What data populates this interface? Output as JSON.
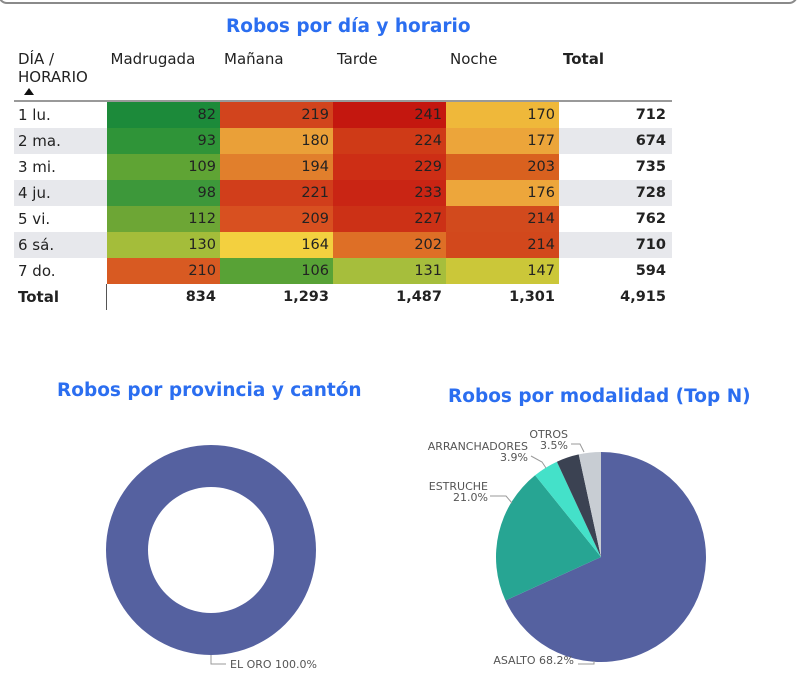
{
  "matrix": {
    "title": "Robos por día y horario",
    "row_header": [
      "DÍA /",
      "HORARIO"
    ],
    "columns": [
      "Madrugada",
      "Mañana",
      "Tarde",
      "Noche"
    ],
    "total_label": "Total",
    "rows": [
      {
        "label": "1 lu.",
        "values": [
          "82",
          "219",
          "241",
          "170"
        ],
        "total": "712",
        "colors": [
          "#1c8a3a",
          "#d2441d",
          "#c4170f",
          "#efb83a"
        ]
      },
      {
        "label": "2 ma.",
        "values": [
          "93",
          "180",
          "224",
          "177"
        ],
        "total": "674",
        "colors": [
          "#2f9438",
          "#eaa038",
          "#cf3a17",
          "#eca53a"
        ]
      },
      {
        "label": "3 mi.",
        "values": [
          "109",
          "194",
          "229",
          "203"
        ],
        "total": "735",
        "colors": [
          "#5fa434",
          "#e17f2c",
          "#cd2e15",
          "#d9611f"
        ]
      },
      {
        "label": "4 ju.",
        "values": [
          "98",
          "221",
          "233",
          "176"
        ],
        "total": "728",
        "colors": [
          "#3d983a",
          "#d13e1b",
          "#c92514",
          "#eda63b"
        ]
      },
      {
        "label": "5 vi.",
        "values": [
          "112",
          "209",
          "227",
          "214"
        ],
        "total": "762",
        "colors": [
          "#6da635",
          "#d85020",
          "#cc3116",
          "#d24a1d"
        ]
      },
      {
        "label": "6 sá.",
        "values": [
          "130",
          "164",
          "202",
          "214"
        ],
        "total": "710",
        "colors": [
          "#a4bd3a",
          "#f3d03f",
          "#de6f26",
          "#d2481c"
        ]
      },
      {
        "label": "7 do.",
        "values": [
          "210",
          "106",
          "131",
          "147"
        ],
        "total": "594",
        "colors": [
          "#d85a22",
          "#58a236",
          "#a6be3c",
          "#cbc739"
        ]
      }
    ],
    "totals_row": {
      "label": "Total",
      "values": [
        "834",
        "1,293",
        "1,487",
        "1,301"
      ],
      "total": "4,915"
    }
  },
  "chart_data": [
    {
      "type": "heatmap",
      "title": "Robos por día y horario",
      "rows": [
        "1 lu.",
        "2 ma.",
        "3 mi.",
        "4 ju.",
        "5 vi.",
        "6 sá.",
        "7 do."
      ],
      "columns": [
        "Madrugada",
        "Mañana",
        "Tarde",
        "Noche"
      ],
      "values": [
        [
          82,
          219,
          241,
          170
        ],
        [
          93,
          180,
          224,
          177
        ],
        [
          109,
          194,
          229,
          203
        ],
        [
          98,
          221,
          233,
          176
        ],
        [
          112,
          209,
          227,
          214
        ],
        [
          130,
          164,
          202,
          214
        ],
        [
          210,
          106,
          131,
          147
        ]
      ],
      "row_totals": [
        712,
        674,
        735,
        728,
        762,
        710,
        594
      ],
      "column_totals": [
        834,
        1293,
        1487,
        1301
      ],
      "grand_total": 4915
    },
    {
      "type": "pie",
      "variant": "donut",
      "title": "Robos por provincia y cantón",
      "slices": [
        {
          "name": "EL ORO",
          "value": 100.0,
          "label": "EL ORO 100.0%",
          "color": "#5561a0"
        }
      ]
    },
    {
      "type": "pie",
      "title": "Robos por modalidad (Top N)",
      "slices": [
        {
          "name": "ASALTO",
          "value": 68.2,
          "label": "ASALTO 68.2%",
          "color": "#5561a0"
        },
        {
          "name": "ESTRUCHE",
          "value": 21.0,
          "label_lines": [
            "ESTRUCHE",
            "21.0%"
          ],
          "color": "#27a593"
        },
        {
          "name": "ARRANCHADORES",
          "value": 3.9,
          "label_lines": [
            "ARRANCHADORES",
            "3.9%"
          ],
          "color": "#44e1c9"
        },
        {
          "name": "OTROS",
          "value": 3.5,
          "label_lines": [
            "OTROS",
            "3.5%"
          ],
          "color": "#3b4252"
        },
        {
          "name": "",
          "value": 3.4,
          "color": "#c8cdd3"
        }
      ]
    }
  ]
}
